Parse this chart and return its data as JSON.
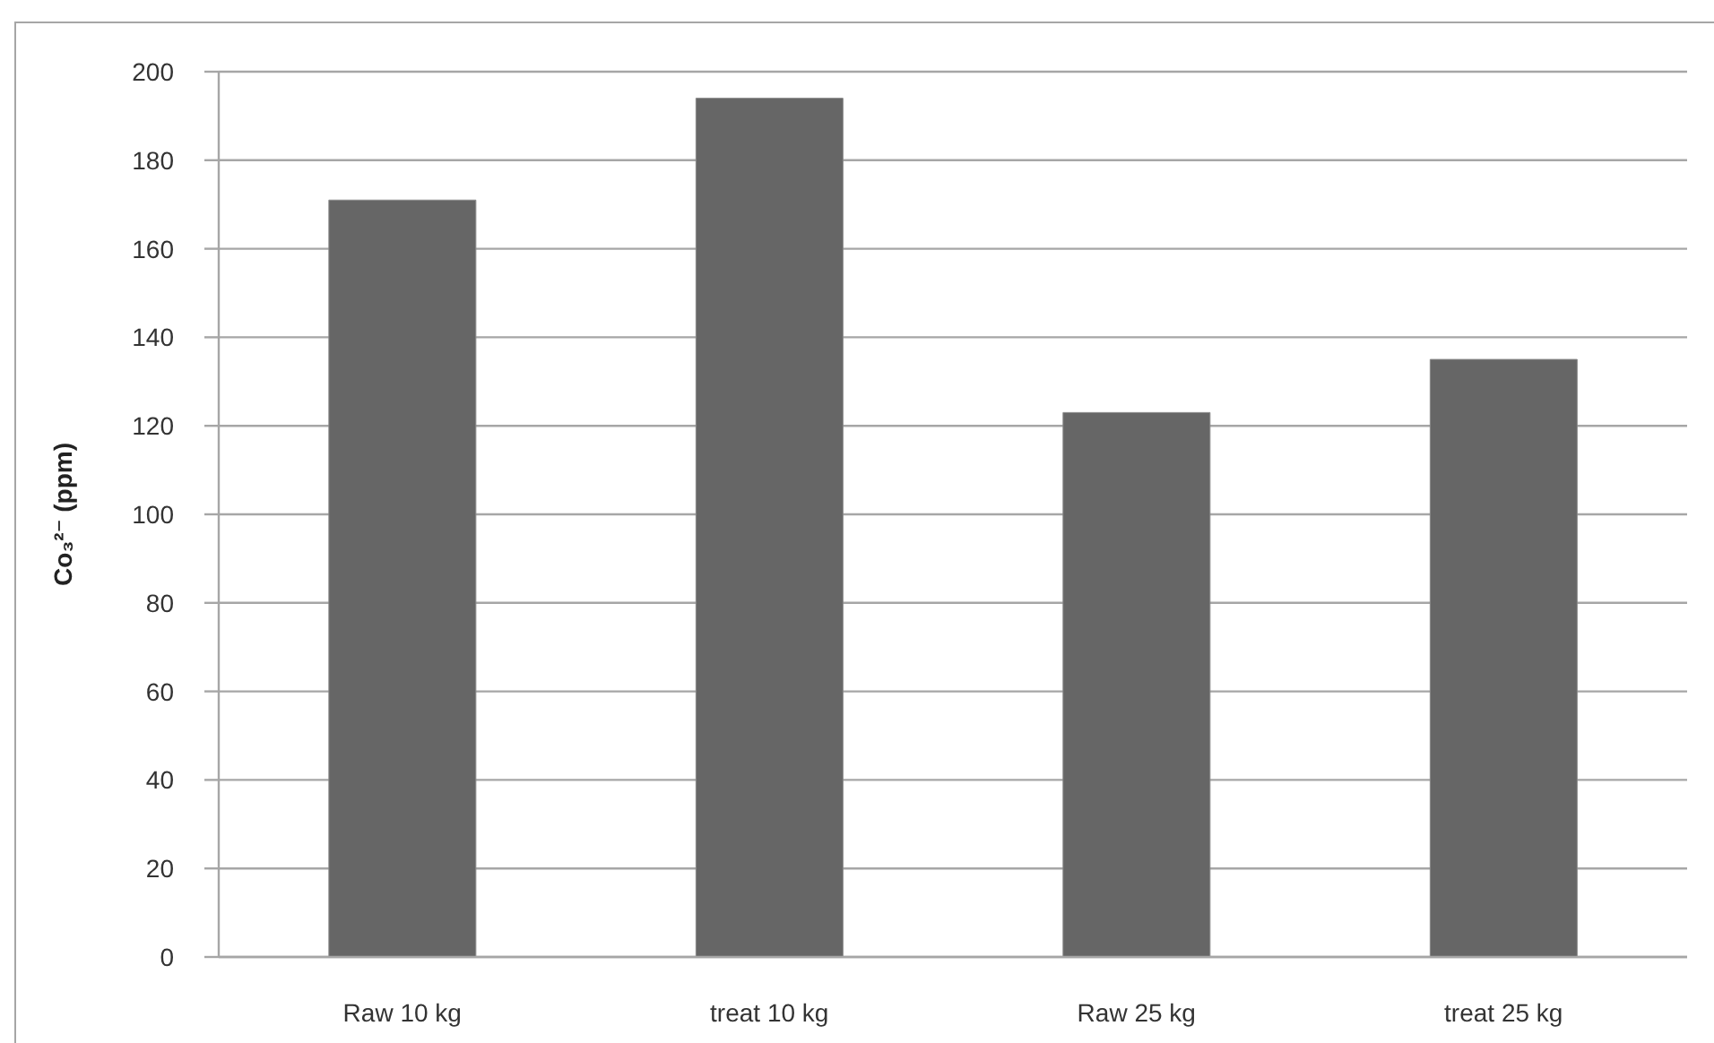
{
  "chart_data": {
    "type": "bar",
    "ylabel": "Co₃²⁻ (ppm)",
    "categories": [
      "Raw 10 kg",
      "treat 10 kg",
      "Raw 25 kg",
      "treat 25 kg"
    ],
    "values": [
      171,
      194,
      123,
      135
    ],
    "color": "#666666",
    "ylim": [
      0,
      200
    ],
    "yticks": [
      0,
      20,
      40,
      60,
      80,
      100,
      120,
      140,
      160,
      180,
      200
    ],
    "grid": "y"
  }
}
